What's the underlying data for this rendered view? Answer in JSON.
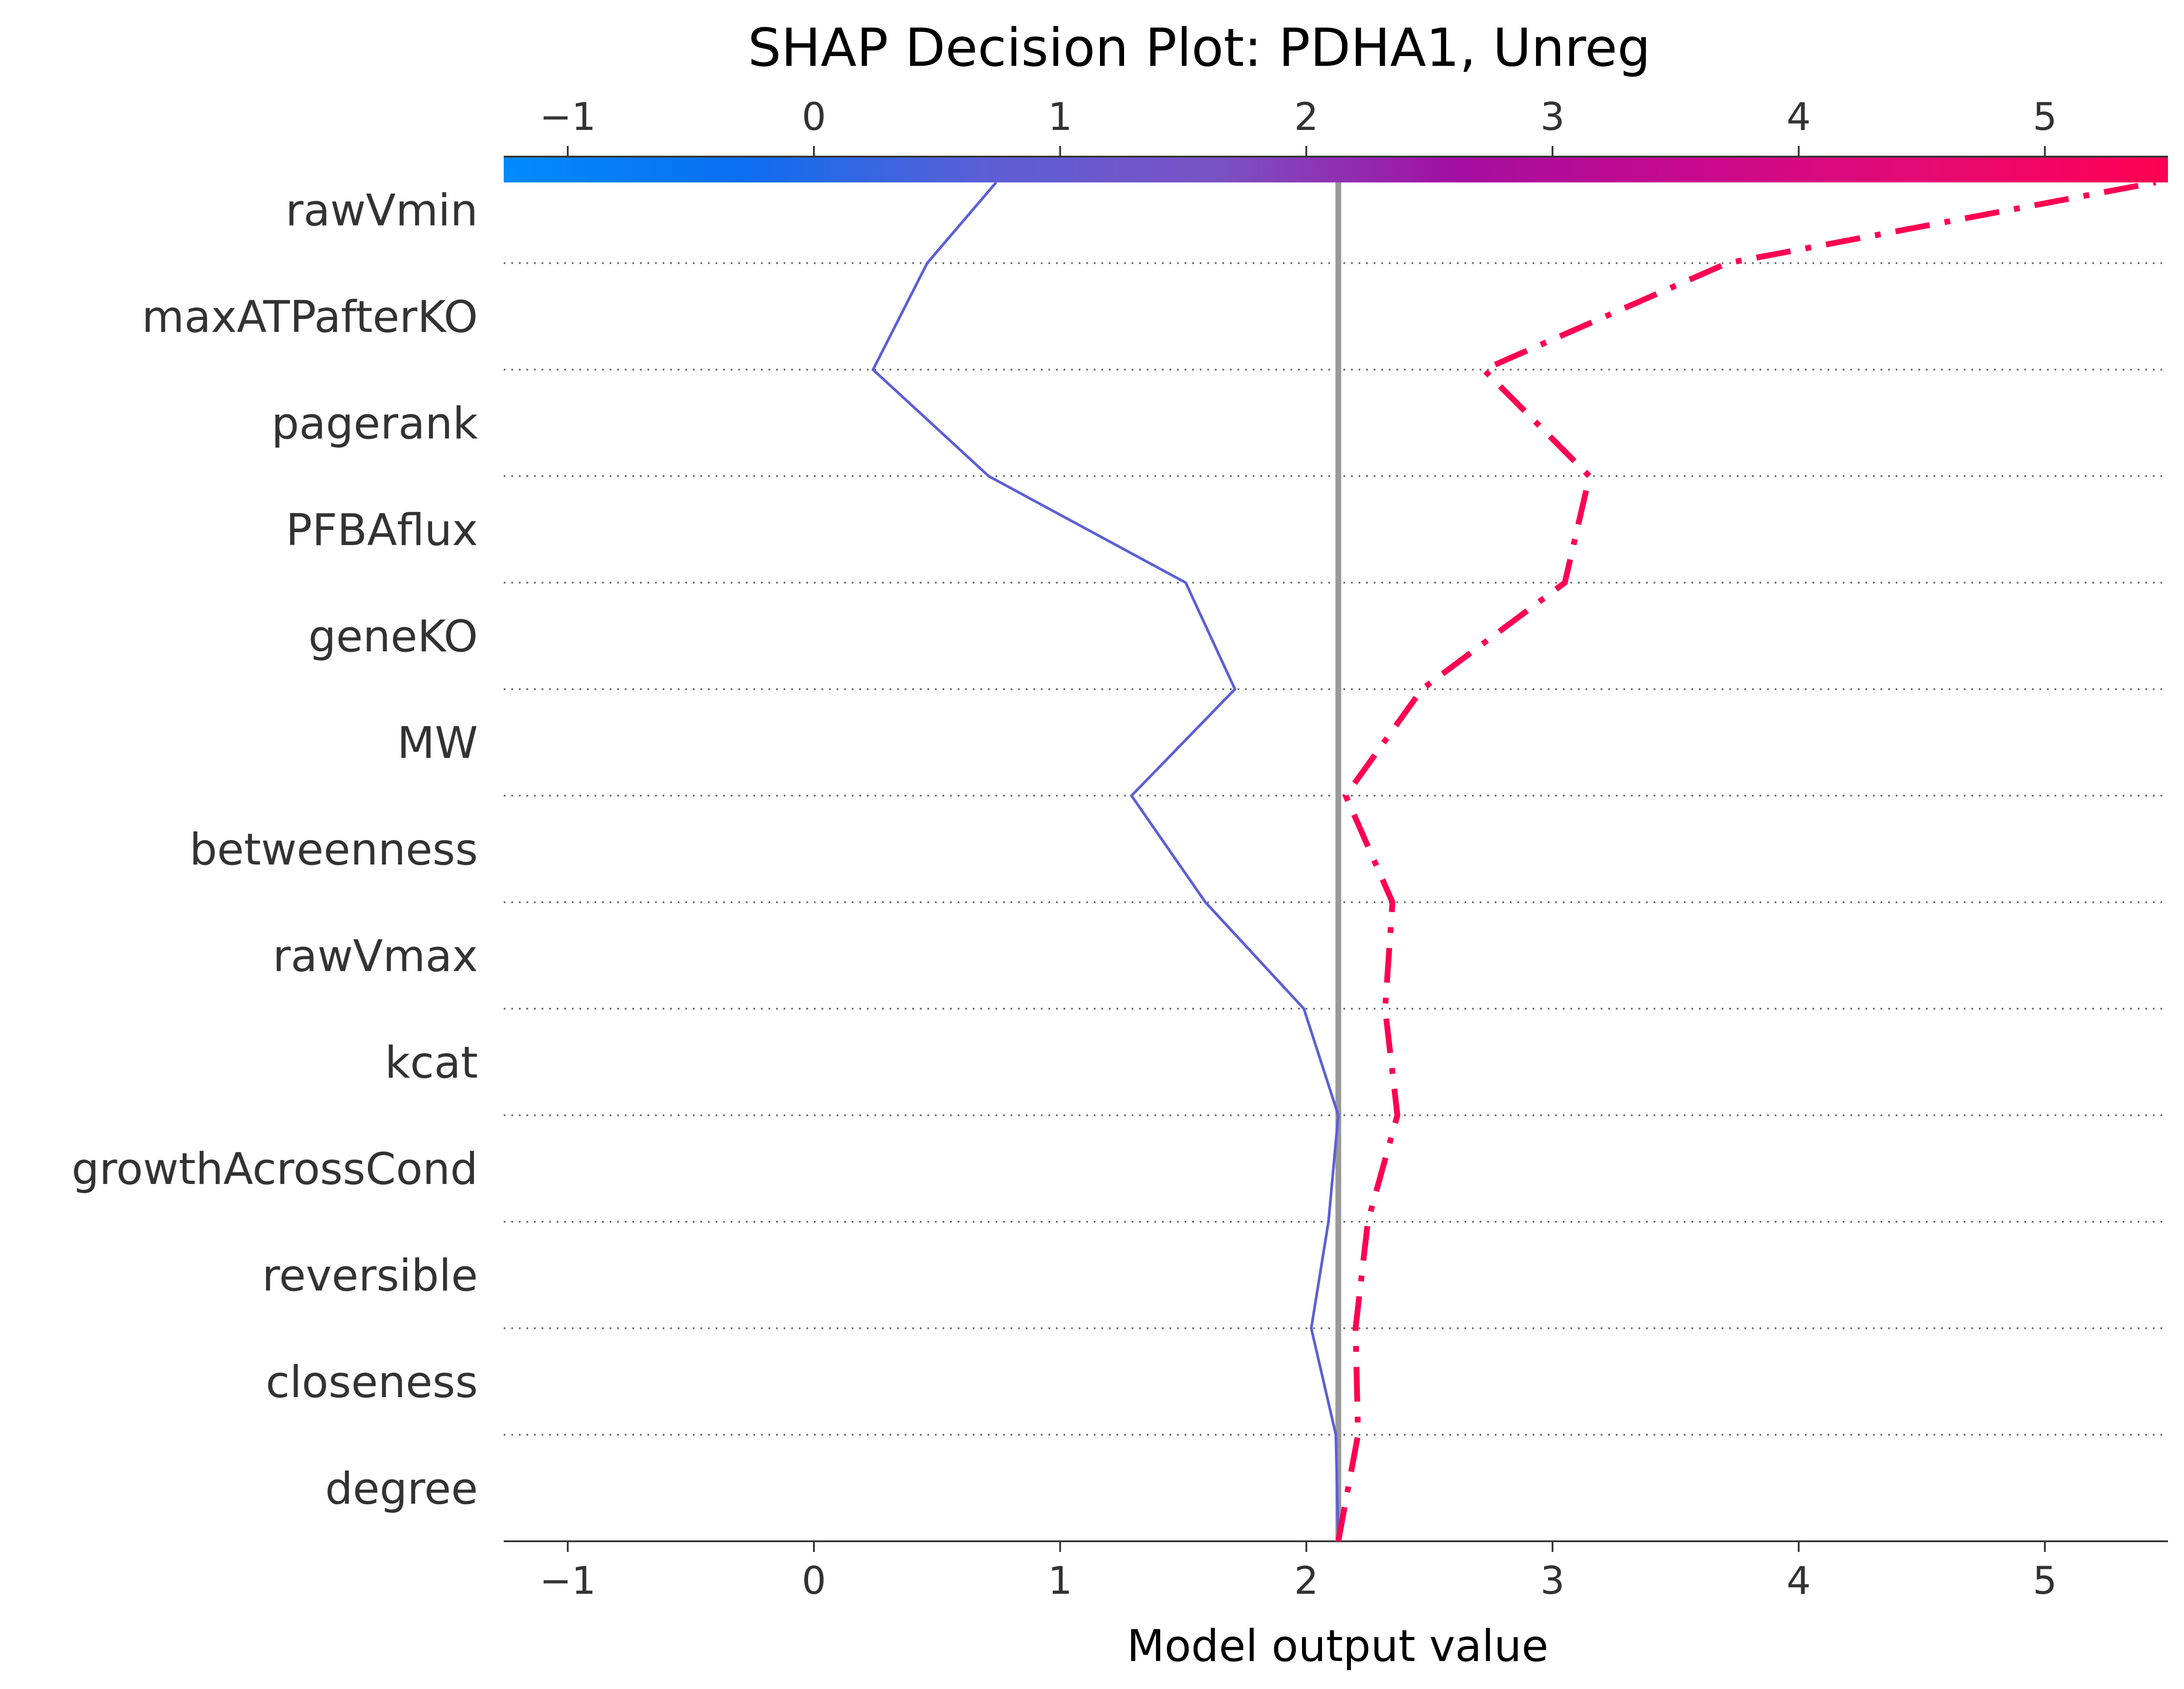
{
  "chart_data": {
    "type": "line",
    "title": "SHAP Decision Plot: PDHA1, Unreg",
    "xlabel": "Model output value",
    "xlim": [
      -1.26,
      5.5
    ],
    "xticks": [
      -1,
      0,
      1,
      2,
      3,
      4,
      5
    ],
    "xtick_labels": [
      "−1",
      "0",
      "1",
      "2",
      "3",
      "4",
      "5"
    ],
    "base_value": 2.13,
    "features": [
      "rawVmin",
      "maxATPafterKO",
      "pagerank",
      "PFBAflux",
      "geneKO",
      "MW",
      "betweenness",
      "rawVmax",
      "kcat",
      "growthAcrossCond",
      "reversible",
      "closeness",
      "degree"
    ],
    "colorbar": {
      "stops": [
        "#008bfb",
        "#0b6ef0",
        "#5b5fd6",
        "#7a52c4",
        "#a30fa0",
        "#c8098d",
        "#e50a72",
        "#ff0052"
      ],
      "range": [
        -1.26,
        5.5
      ]
    },
    "series": [
      {
        "color": "#5b5fd6",
        "style": "solid",
        "boundary_values": [
          2.13,
          2.12,
          2.02,
          2.09,
          2.13,
          1.99,
          1.59,
          1.29,
          1.71,
          1.51,
          0.71,
          0.24,
          0.46,
          0.74
        ]
      },
      {
        "color": "#ff0052",
        "style": "dashdot",
        "boundary_values": [
          2.13,
          2.21,
          2.2,
          2.25,
          2.37,
          2.32,
          2.35,
          2.16,
          2.47,
          3.05,
          3.15,
          2.72,
          3.71,
          5.45
        ]
      }
    ]
  }
}
